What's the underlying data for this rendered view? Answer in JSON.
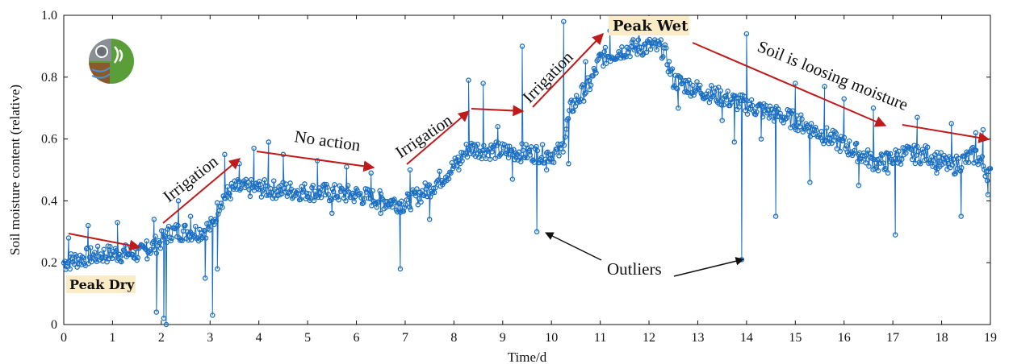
{
  "chart_data": {
    "type": "scatter",
    "xlabel": "Time/d",
    "ylabel": "Soil moisture content (relative)",
    "xlim": [
      0,
      19
    ],
    "ylim": [
      0,
      1
    ],
    "xticks": [
      "0",
      "1",
      "2",
      "3",
      "4",
      "5",
      "6",
      "7",
      "8",
      "9",
      "10",
      "11",
      "12",
      "13",
      "14",
      "15",
      "16",
      "17",
      "18",
      "19"
    ],
    "yticks": [
      "0",
      "0.2",
      "0.4",
      "0.6",
      "0.8",
      "1.0"
    ],
    "grid": false,
    "marker_color": "#1a6fc4",
    "arrow_color": "#c01a1a",
    "baseline": [
      [
        0,
        0.2
      ],
      [
        0.5,
        0.22
      ],
      [
        1.0,
        0.23
      ],
      [
        1.6,
        0.23
      ],
      [
        1.9,
        0.26
      ],
      [
        2.2,
        0.3
      ],
      [
        2.8,
        0.3
      ],
      [
        3.05,
        0.32
      ],
      [
        3.2,
        0.4
      ],
      [
        3.5,
        0.44
      ],
      [
        4.0,
        0.44
      ],
      [
        5.0,
        0.43
      ],
      [
        6.0,
        0.42
      ],
      [
        6.6,
        0.4
      ],
      [
        7.0,
        0.39
      ],
      [
        7.5,
        0.44
      ],
      [
        8.0,
        0.51
      ],
      [
        8.3,
        0.57
      ],
      [
        9.0,
        0.56
      ],
      [
        10.0,
        0.55
      ],
      [
        10.2,
        0.56
      ],
      [
        10.4,
        0.7
      ],
      [
        10.8,
        0.78
      ],
      [
        11.0,
        0.86
      ],
      [
        11.5,
        0.89
      ],
      [
        12.0,
        0.9
      ],
      [
        12.3,
        0.89
      ],
      [
        12.5,
        0.79
      ],
      [
        13.0,
        0.76
      ],
      [
        14.0,
        0.71
      ],
      [
        15.0,
        0.66
      ],
      [
        16.0,
        0.58
      ],
      [
        16.7,
        0.52
      ],
      [
        17.2,
        0.55
      ],
      [
        17.7,
        0.55
      ],
      [
        18.2,
        0.51
      ],
      [
        18.7,
        0.55
      ],
      [
        19.0,
        0.48
      ]
    ],
    "outliers": [
      [
        0.1,
        0.28
      ],
      [
        0.5,
        0.32
      ],
      [
        1.1,
        0.33
      ],
      [
        1.7,
        0.27
      ],
      [
        1.85,
        0.34
      ],
      [
        1.9,
        0.04
      ],
      [
        2.05,
        0.02
      ],
      [
        2.1,
        0.0
      ],
      [
        2.35,
        0.4
      ],
      [
        2.6,
        0.35
      ],
      [
        2.9,
        0.15
      ],
      [
        3.05,
        0.03
      ],
      [
        3.15,
        0.18
      ],
      [
        3.3,
        0.55
      ],
      [
        3.6,
        0.52
      ],
      [
        3.9,
        0.57
      ],
      [
        4.2,
        0.59
      ],
      [
        4.5,
        0.55
      ],
      [
        5.2,
        0.53
      ],
      [
        5.5,
        0.36
      ],
      [
        5.8,
        0.51
      ],
      [
        6.3,
        0.49
      ],
      [
        6.5,
        0.36
      ],
      [
        6.9,
        0.18
      ],
      [
        7.1,
        0.5
      ],
      [
        7.5,
        0.34
      ],
      [
        8.1,
        0.5
      ],
      [
        8.3,
        0.79
      ],
      [
        8.6,
        0.78
      ],
      [
        8.9,
        0.64
      ],
      [
        9.2,
        0.47
      ],
      [
        9.4,
        0.9
      ],
      [
        9.7,
        0.3
      ],
      [
        9.9,
        0.5
      ],
      [
        10.25,
        0.98
      ],
      [
        10.35,
        0.52
      ],
      [
        10.7,
        0.85
      ],
      [
        11.2,
        0.95
      ],
      [
        11.8,
        0.96
      ],
      [
        12.6,
        0.7
      ],
      [
        13.1,
        0.74
      ],
      [
        13.5,
        0.66
      ],
      [
        13.75,
        0.59
      ],
      [
        13.9,
        0.21
      ],
      [
        14.0,
        0.94
      ],
      [
        14.3,
        0.6
      ],
      [
        14.6,
        0.35
      ],
      [
        15.0,
        0.78
      ],
      [
        15.3,
        0.46
      ],
      [
        15.6,
        0.77
      ],
      [
        16.0,
        0.73
      ],
      [
        16.3,
        0.45
      ],
      [
        16.6,
        0.7
      ],
      [
        16.9,
        0.49
      ],
      [
        17.05,
        0.29
      ],
      [
        17.5,
        0.67
      ],
      [
        17.9,
        0.49
      ],
      [
        18.2,
        0.65
      ],
      [
        18.4,
        0.35
      ],
      [
        18.7,
        0.62
      ],
      [
        18.85,
        0.63
      ],
      [
        18.95,
        0.42
      ]
    ],
    "annotations": {
      "peak_dry": "Peak Dry",
      "peak_wet": "Peak Wet",
      "irrigation_1": "Irrigation",
      "no_action": "No action",
      "irrigation_2": "Irrigation",
      "irrigation_3": "Irrigation",
      "soil_loosing": "Soil is loosing moisture",
      "outliers": "Outliers"
    }
  }
}
